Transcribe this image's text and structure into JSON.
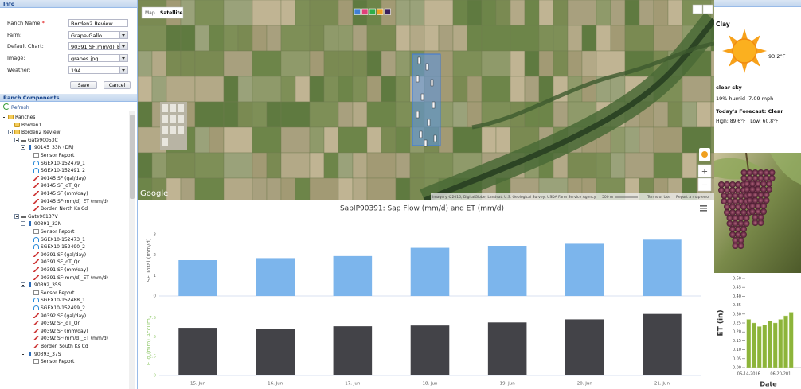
{
  "info": {
    "title": "Info",
    "fields": [
      {
        "label": "Ranch Name:",
        "required": "*",
        "value": "Borden2 Review",
        "select": false
      },
      {
        "label": "Farm:",
        "value": "Grape-Gallo",
        "select": true
      },
      {
        "label": "Default Chart:",
        "value": "90391 SF(mm/d)_ET (mm/d",
        "select": true
      },
      {
        "label": "Image:",
        "value": "grapes.jpg",
        "select": true
      },
      {
        "label": "Weather:",
        "value": "194",
        "select": true
      }
    ],
    "buttons": [
      "Save",
      "Cancel"
    ]
  },
  "components": {
    "title": "Ranch Components",
    "refresh": "Refresh",
    "tree": [
      {
        "label": "Ranches",
        "level": 0,
        "icon": "folder"
      },
      {
        "label": "Borden1",
        "level": 1,
        "icon": "folder"
      },
      {
        "label": "Borden2 Review",
        "level": 1,
        "icon": "folder"
      },
      {
        "label": "Gate90053C",
        "level": 2,
        "icon": "gate"
      },
      {
        "label": "90145_33N (DR)",
        "level": 3,
        "icon": "device"
      },
      {
        "label": "Sensor Report",
        "level": 4,
        "icon": "report"
      },
      {
        "label": "SGEX10-152479_1",
        "level": 4,
        "icon": "sensor"
      },
      {
        "label": "SGEX10-152491_2",
        "level": 4,
        "icon": "sensor"
      },
      {
        "label": "90145 SF (gal/day)",
        "level": 4,
        "icon": "chart"
      },
      {
        "label": "90145 SF_dT_Qr",
        "level": 4,
        "icon": "chart"
      },
      {
        "label": "90145 SF (mm/day)",
        "level": 4,
        "icon": "chart"
      },
      {
        "label": "90145 SF(mm/d)_ET (mm/d)",
        "level": 4,
        "icon": "chart"
      },
      {
        "label": "Borden North Ks Cd",
        "level": 4,
        "icon": "chart"
      },
      {
        "label": "Gate90137V",
        "level": 2,
        "icon": "gate"
      },
      {
        "label": "90391_32N",
        "level": 3,
        "icon": "device"
      },
      {
        "label": "Sensor Report",
        "level": 4,
        "icon": "report"
      },
      {
        "label": "SGEX10-152473_1",
        "level": 4,
        "icon": "sensor"
      },
      {
        "label": "SGEX10-152490_2",
        "level": 4,
        "icon": "sensor"
      },
      {
        "label": "90391 SF (gal/day)",
        "level": 4,
        "icon": "chart"
      },
      {
        "label": "90391 SF_dT_Qr",
        "level": 4,
        "icon": "chart"
      },
      {
        "label": "90391 SF (mm/day)",
        "level": 4,
        "icon": "chart"
      },
      {
        "label": "90391 SF(mm/d)_ET (mm/d)",
        "level": 4,
        "icon": "chart"
      },
      {
        "label": "90392_35S",
        "level": 3,
        "icon": "device"
      },
      {
        "label": "Sensor Report",
        "level": 4,
        "icon": "report"
      },
      {
        "label": "SGEX10-152488_1",
        "level": 4,
        "icon": "sensor"
      },
      {
        "label": "SGEX10-152499_2",
        "level": 4,
        "icon": "sensor"
      },
      {
        "label": "90392 SF (gal/day)",
        "level": 4,
        "icon": "chart"
      },
      {
        "label": "90392 SF_dT_Qr",
        "level": 4,
        "icon": "chart"
      },
      {
        "label": "90392 SF (mm/day)",
        "level": 4,
        "icon": "chart"
      },
      {
        "label": "90392 SF(mm/d)_ET (mm/d)",
        "level": 4,
        "icon": "chart"
      },
      {
        "label": "Borden South Ks Cd",
        "level": 4,
        "icon": "chart"
      },
      {
        "label": "90393_37S",
        "level": 3,
        "icon": "device"
      },
      {
        "label": "Sensor Report",
        "level": 4,
        "icon": "report"
      }
    ]
  },
  "map": {
    "buttons": [
      "Map",
      "Satellite"
    ],
    "layer_colors": [
      "#3f7fd6",
      "#e0407a",
      "#2fae4a",
      "#f0a020",
      "#3a1f5c"
    ],
    "logo": "Google",
    "attribution": "Imagery ©2016, DigitalGlobe, Landsat, U.S. Geological Survey, USDA Farm Service Agency",
    "scale": "500 m",
    "links": [
      "Terms of Use",
      "Report a map error"
    ],
    "zoom": [
      "+",
      "−"
    ]
  },
  "weather": {
    "soil": "Clay",
    "temperature": "93.2°F",
    "condition": "clear sky",
    "humidity": "19% humid",
    "wind": "7.09 mph",
    "forecast": "Today's Forecast: Clear",
    "high": "High: 89.6°F",
    "low": "Low: 60.8°F"
  },
  "chart_data": [
    {
      "type": "bar",
      "title": "SapIP90391: Sap Flow (mm/d) and ET (mm/d)",
      "y_label": "SF Total (mm/d)",
      "values": [
        1.75,
        1.85,
        1.95,
        2.35,
        2.45,
        2.55,
        2.75
      ],
      "color": "#7cb5ec",
      "label_color": "#666666",
      "ylim": [
        0,
        3.5
      ],
      "yticks": [
        0,
        1,
        2,
        3
      ],
      "grid": false
    },
    {
      "type": "bar",
      "y_label": "ETo (mm) Accum.",
      "categories": [
        "15. Jun",
        "16. Jun",
        "17. Jun",
        "18. Jun",
        "19. Jun",
        "20. Jun",
        "21. Jun"
      ],
      "values": [
        6.2,
        6.0,
        6.4,
        6.5,
        6.9,
        7.3,
        8.0
      ],
      "color": "#434348",
      "label_color": "#90c86a",
      "ylim": [
        0,
        9
      ],
      "yticks": [
        0,
        2.5,
        5,
        7.5
      ],
      "grid": false
    },
    {
      "type": "bar",
      "y_label": "ET (in)",
      "x_label": "Date",
      "categories": [
        "06-14-2016",
        null,
        null,
        null,
        null,
        null,
        "06-20-201",
        null,
        null
      ],
      "values": [
        0.27,
        0.25,
        0.23,
        0.24,
        0.26,
        0.25,
        0.27,
        0.29,
        0.31
      ],
      "color": "#8db43a",
      "ylim": [
        0,
        0.5
      ],
      "yticks": [
        {
          "value": 0,
          "label": "0.00"
        },
        {
          "value": 0.05,
          "label": "0.05"
        },
        {
          "value": 0.1,
          "label": "0.10"
        },
        {
          "value": 0.15,
          "label": "0.15"
        },
        {
          "value": 0.2,
          "label": "0.20"
        },
        {
          "value": 0.25,
          "label": "0.25"
        },
        {
          "value": 0.3,
          "label": "0.30"
        },
        {
          "value": 0.35,
          "label": "0.35"
        },
        {
          "value": 0.4,
          "label": "0.40"
        },
        {
          "value": 0.45,
          "label": "0.45"
        },
        {
          "value": 0.5,
          "label": "0.50"
        }
      ],
      "grid": false
    }
  ]
}
